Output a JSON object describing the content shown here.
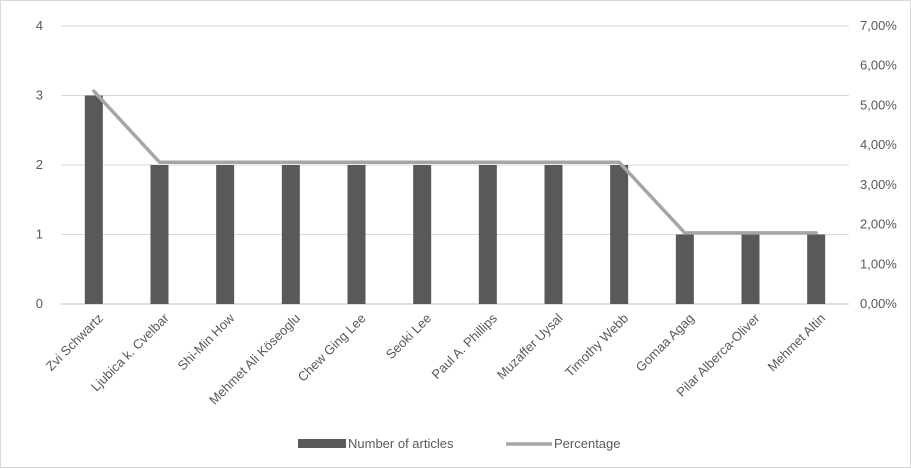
{
  "chart_data": {
    "type": "bar",
    "categories": [
      "Zvi Schwartz",
      "Ljubica k. Cvelbar",
      "Shi-Min How",
      "Mehmet Ali Köseoglu",
      "Chew Ging Lee",
      "Seoki Lee",
      "Paul A. Phillips",
      "Muzaffer Uysal",
      "Timothy Webb",
      "Gomaa Agag",
      "Pilar Alberca-Oliver",
      "Mehmet Altin"
    ],
    "series": [
      {
        "name": "Number of articles",
        "type": "bar",
        "axis": "left",
        "color": "#595959",
        "values": [
          3,
          2,
          2,
          2,
          2,
          2,
          2,
          2,
          2,
          1,
          1,
          1
        ]
      },
      {
        "name": "Percentage",
        "type": "line",
        "axis": "right",
        "color": "#a6a6a6",
        "values": [
          5.36,
          3.57,
          3.57,
          3.57,
          3.57,
          3.57,
          3.57,
          3.57,
          3.57,
          1.79,
          1.79,
          1.79
        ]
      }
    ],
    "y_left": {
      "ylim": [
        0,
        4
      ],
      "ticks": [
        "0",
        "1",
        "2",
        "3",
        "4"
      ],
      "tick_values": [
        0,
        1,
        2,
        3,
        4
      ]
    },
    "y_right": {
      "ylim": [
        0,
        7
      ],
      "ticks": [
        "0,00%",
        "1,00%",
        "2,00%",
        "3,00%",
        "4,00%",
        "5,00%",
        "6,00%",
        "7,00%"
      ],
      "tick_values": [
        0,
        1,
        2,
        3,
        4,
        5,
        6,
        7
      ]
    },
    "grid": true,
    "legend_position": "bottom"
  }
}
